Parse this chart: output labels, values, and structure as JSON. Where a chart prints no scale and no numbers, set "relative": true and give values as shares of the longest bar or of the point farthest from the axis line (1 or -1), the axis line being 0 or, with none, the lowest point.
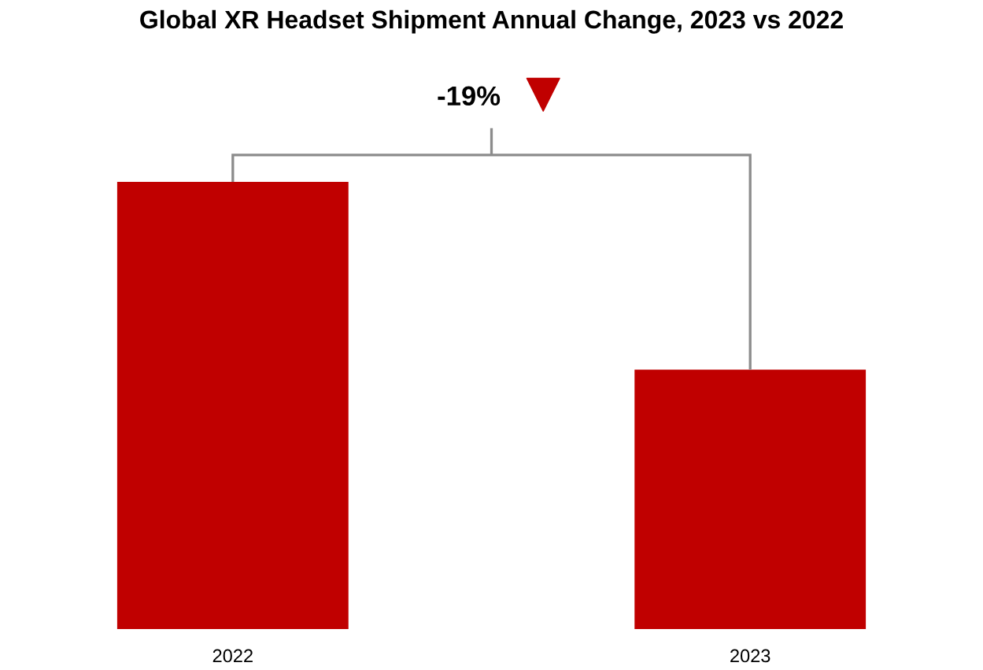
{
  "chart_data": {
    "type": "bar",
    "title": "Global XR Headset Shipment Annual Change, 2023 vs 2022",
    "categories": [
      "2022",
      "2023"
    ],
    "values": [
      1,
      0.58
    ],
    "color": "#c00000",
    "relative": true,
    "annotations": [
      "-19%"
    ]
  }
}
